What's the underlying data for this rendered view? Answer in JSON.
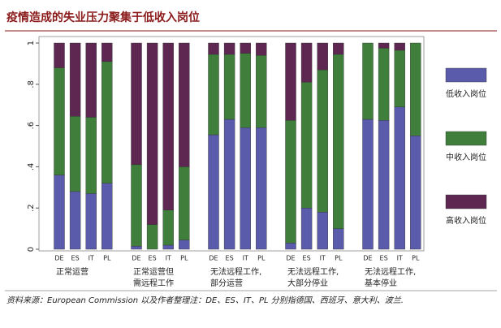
{
  "chart_data": {
    "type": "stacked_bar",
    "title": "疫情造成的失业压力聚集于低收入岗位",
    "categories": [
      "DE",
      "ES",
      "IT",
      "PL",
      "DE",
      "ES",
      "IT",
      "PL",
      "DE",
      "ES",
      "IT",
      "PL",
      "DE",
      "ES",
      "IT",
      "PL",
      "DE",
      "ES",
      "IT",
      "PL"
    ],
    "groups": [
      [
        "正常运营"
      ],
      [
        "正常运营但",
        "需远程工作"
      ],
      [
        "无法远程工作,",
        "部分运营"
      ],
      [
        "无法远程工作,",
        "大部分停业"
      ],
      [
        "无法远程工作,",
        "基本停业"
      ]
    ],
    "series": [
      {
        "name": "低收入岗位",
        "color": "#5b5bab",
        "values": [
          0.36,
          0.28,
          0.27,
          0.32,
          0.015,
          0,
          0.02,
          0.045,
          0.555,
          0.63,
          0.59,
          0.59,
          0.03,
          0.2,
          0.18,
          0.1,
          0.63,
          0.625,
          0.69,
          0.55
        ]
      },
      {
        "name": "中收入岗位",
        "color": "#3f7f3b",
        "values": [
          0.52,
          0.365,
          0.37,
          0.59,
          0.395,
          0.12,
          0.17,
          0.355,
          0.39,
          0.315,
          0.36,
          0.35,
          0.595,
          0.61,
          0.69,
          0.845,
          0.37,
          0.35,
          0.275,
          0.45
        ]
      },
      {
        "name": "高收入岗位",
        "color": "#5e2752",
        "values": [
          0.12,
          0.355,
          0.36,
          0.09,
          0.59,
          0.88,
          0.81,
          0.6,
          0.055,
          0.055,
          0.05,
          0.06,
          0.375,
          0.19,
          0.13,
          0.055,
          0,
          0.025,
          0.035,
          0
        ]
      }
    ],
    "ylim": [
      0,
      1
    ],
    "yticks": [
      0,
      {
        "value": 0.2,
        "label": ".2"
      },
      {
        "value": 0.4,
        "label": ".4"
      },
      {
        "value": 0.6,
        "label": ".6"
      },
      {
        "value": 0.8,
        "label": ".8"
      },
      1
    ],
    "grid": false,
    "legend": "right",
    "note": "资料来源：European Commission 以及作者整理注：DE、ES、IT、PL 分别指德国、西班牙、意大利、波兰."
  }
}
